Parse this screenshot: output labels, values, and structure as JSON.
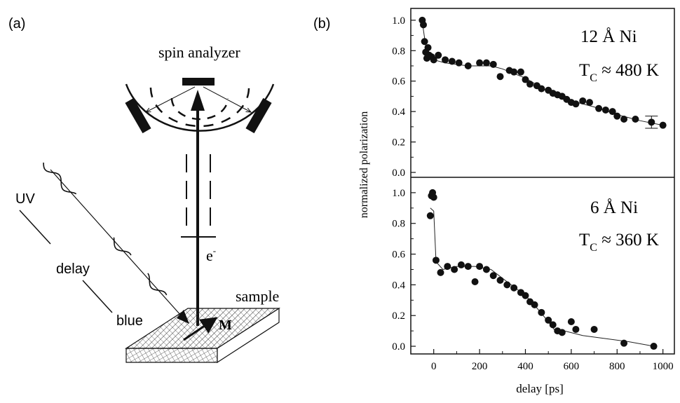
{
  "panel_a": {
    "label": "(a)",
    "spin_analyzer": "spin analyzer",
    "uv": "UV",
    "delay": "delay",
    "blue": "blue",
    "electron": "e",
    "electron_sup": "-",
    "sample": "sample",
    "magnetization": "M"
  },
  "panel_b": {
    "label": "(b)",
    "ylabel": "normalized polarization",
    "xlabel": "delay [ps]",
    "top_annot_1": "12 Å Ni",
    "top_annot_2_main": "T",
    "top_annot_2_sub": "C",
    "top_annot_2_rest": " ≈ 480 K",
    "bottom_annot_1": "6 Å Ni",
    "bottom_annot_2_main": "T",
    "bottom_annot_2_sub": "C",
    "bottom_annot_2_rest": " ≈ 360 K"
  },
  "chart_data": [
    {
      "type": "scatter",
      "x": [
        -50,
        -45,
        -40,
        -35,
        -30,
        -25,
        -20,
        -10,
        0,
        20,
        50,
        80,
        110,
        150,
        200,
        230,
        260,
        290,
        330,
        350,
        380,
        400,
        420,
        450,
        470,
        500,
        520,
        540,
        560,
        580,
        600,
        620,
        650,
        680,
        720,
        750,
        780,
        800,
        830,
        880,
        950,
        1000
      ],
      "y": [
        1.0,
        0.97,
        0.86,
        0.79,
        0.75,
        0.82,
        0.77,
        0.76,
        0.74,
        0.77,
        0.74,
        0.73,
        0.72,
        0.7,
        0.72,
        0.72,
        0.71,
        0.63,
        0.67,
        0.66,
        0.66,
        0.61,
        0.58,
        0.57,
        0.55,
        0.54,
        0.52,
        0.51,
        0.5,
        0.48,
        0.46,
        0.45,
        0.47,
        0.46,
        0.42,
        0.41,
        0.4,
        0.37,
        0.35,
        0.35,
        0.33,
        0.31
      ],
      "fit_x": [
        -50,
        -30,
        0,
        50,
        150,
        250,
        300,
        400,
        500,
        600,
        700,
        800,
        900,
        1000
      ],
      "fit_y": [
        0.99,
        0.78,
        0.74,
        0.72,
        0.7,
        0.7,
        0.68,
        0.62,
        0.53,
        0.47,
        0.43,
        0.38,
        0.34,
        0.31
      ],
      "errorbar_x": 950,
      "errorbar_y": 0.33,
      "errorbar_dy": 0.04,
      "xlim": [
        -100,
        1050
      ],
      "ylim": [
        0.0,
        1.05
      ],
      "yticks": [
        "0.0",
        "0.2",
        "0.4",
        "0.6",
        "0.8",
        "1.0"
      ]
    },
    {
      "type": "scatter",
      "x": [
        -15,
        -10,
        -5,
        0,
        10,
        30,
        60,
        90,
        120,
        150,
        180,
        200,
        230,
        260,
        290,
        320,
        350,
        380,
        400,
        420,
        440,
        470,
        500,
        520,
        540,
        560,
        600,
        620,
        700,
        830,
        960
      ],
      "y": [
        0.85,
        0.98,
        1.0,
        0.97,
        0.56,
        0.48,
        0.52,
        0.5,
        0.53,
        0.52,
        0.42,
        0.52,
        0.5,
        0.46,
        0.43,
        0.4,
        0.38,
        0.35,
        0.33,
        0.29,
        0.27,
        0.22,
        0.17,
        0.14,
        0.1,
        0.09,
        0.16,
        0.11,
        0.11,
        0.02,
        0.0
      ],
      "fit_x": [
        -15,
        0,
        10,
        40,
        100,
        180,
        250,
        320,
        400,
        450,
        500,
        530,
        570,
        650,
        750,
        850,
        960
      ],
      "fit_y": [
        0.9,
        0.88,
        0.55,
        0.5,
        0.52,
        0.52,
        0.5,
        0.42,
        0.33,
        0.25,
        0.16,
        0.1,
        0.1,
        0.07,
        0.05,
        0.03,
        0.0
      ],
      "xlim": [
        -100,
        1050
      ],
      "ylim": [
        -0.05,
        1.1
      ],
      "yticks": [
        "0.0",
        "0.2",
        "0.4",
        "0.6",
        "0.8",
        "1.0"
      ],
      "xticks": [
        "0",
        "200",
        "400",
        "600",
        "800",
        "1000"
      ]
    }
  ]
}
